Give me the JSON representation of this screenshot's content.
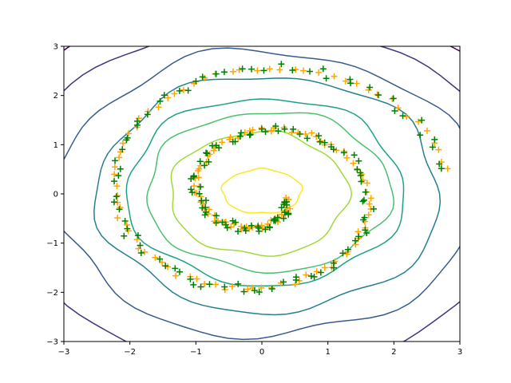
{
  "chart_data": {
    "type": "scatter",
    "title": "",
    "xlabel": "",
    "ylabel": "",
    "xlim": [
      -3,
      3
    ],
    "ylim": [
      -3,
      3
    ],
    "x_ticks": [
      -3,
      -2,
      -1,
      0,
      1,
      2,
      3
    ],
    "y_ticks": [
      -3,
      -2,
      -1,
      0,
      1,
      2,
      3
    ],
    "x_tick_labels": [
      "−3",
      "−2",
      "−1",
      "0",
      "1",
      "2",
      "3"
    ],
    "y_tick_labels": [
      "−3",
      "−2",
      "−1",
      "0",
      "1",
      "2",
      "3"
    ],
    "grid": false,
    "legend": "none",
    "contours": {
      "colormap": "viridis",
      "levels": [
        {
          "rx": 0.6,
          "ry": 0.45,
          "cx": 0.0,
          "cy": 0.05,
          "color": "#fde725"
        },
        {
          "rx": 1.35,
          "ry": 1.25,
          "cx": -0.05,
          "cy": 0.0,
          "color": "#a0da39"
        },
        {
          "rx": 1.85,
          "ry": 1.62,
          "cx": 0.1,
          "cy": 0.05,
          "color": "#4ac16d"
        },
        {
          "rx": 2.1,
          "ry": 1.9,
          "cx": 0.05,
          "cy": 0.05,
          "color": "#1fa187"
        },
        {
          "rx": 2.6,
          "ry": 2.4,
          "cx": 0.1,
          "cy": 0.0,
          "color": "#277f8e"
        },
        {
          "rx": 3.15,
          "ry": 2.9,
          "cx": 0.05,
          "cy": 0.0,
          "color": "#365c8d"
        },
        {
          "rx": 3.8,
          "ry": 3.5,
          "cx": 0.0,
          "cy": 0.0,
          "color": "#46327e"
        },
        {
          "rx": 4.4,
          "ry": 4.1,
          "cx": 0.0,
          "cy": 0.0,
          "color": "#440154"
        }
      ]
    },
    "series": [
      {
        "marker": "+",
        "color": "#ffa500",
        "spiral": {
          "a": 0.35,
          "b": 0.2,
          "theta_start": 0.3,
          "theta_end": 12.4,
          "n": 160,
          "jitter": 0.05,
          "seed": 7
        }
      },
      {
        "marker": "+",
        "color": "#008000",
        "spiral": {
          "a": 0.35,
          "b": 0.2,
          "theta_start": 0.3,
          "theta_end": 12.4,
          "n": 160,
          "jitter": 0.09,
          "seed": 21
        }
      }
    ]
  }
}
